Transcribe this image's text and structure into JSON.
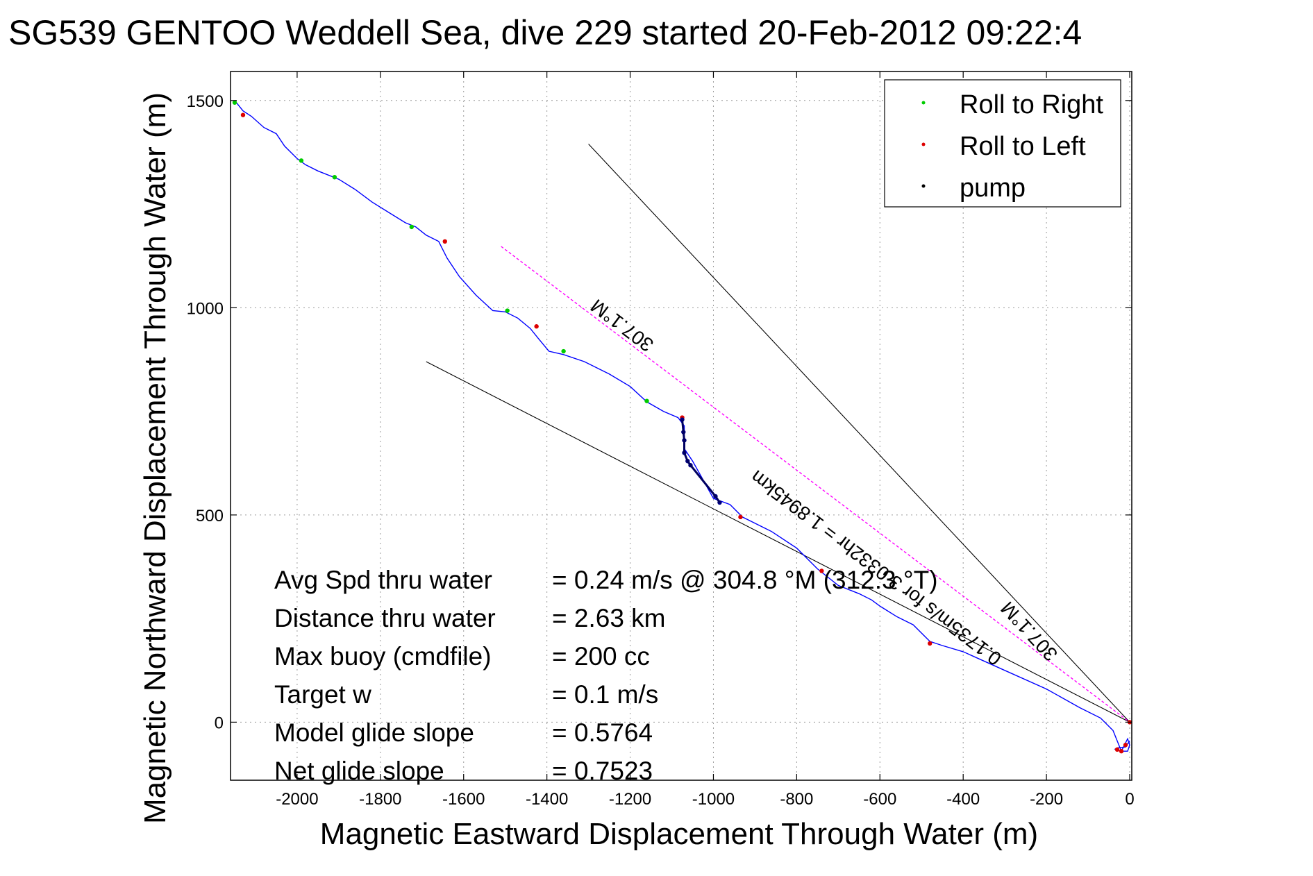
{
  "chart_data": {
    "type": "line",
    "title": "SG539 GENTOO Weddell Sea, dive 229 started 20-Feb-2012 09:22:4",
    "xlabel": "Magnetic Eastward Displacement Through Water (m)",
    "ylabel": "Magnetic Northward Displacement Through Water (m)",
    "xlim": [
      -2160,
      5
    ],
    "ylim": [
      -140,
      1570
    ],
    "xticks": [
      -2000,
      -1800,
      -1600,
      -1400,
      -1200,
      -1000,
      -800,
      -600,
      -400,
      -200,
      0
    ],
    "xtick_labels": [
      "-2000",
      "-1800",
      "-1600",
      "-1400",
      "-1200",
      "-1000",
      "-800",
      "-600",
      "-400",
      "-200",
      "0"
    ],
    "yticks": [
      0,
      500,
      1000,
      1500
    ],
    "ytick_labels": [
      "0",
      "500",
      "1000",
      "1500"
    ],
    "grid": true,
    "legend_position": "top-right",
    "legend": [
      {
        "label": "Roll to Right",
        "color": "#00cc00"
      },
      {
        "label": "Roll to Left",
        "color": "#dd0000"
      },
      {
        "label": "pump",
        "color": "#000000"
      }
    ],
    "series": [
      {
        "style": "track",
        "color": "#0000ff",
        "x": [
          -2150,
          -2130,
          -2110,
          -2080,
          -2050,
          -2030,
          -2000,
          -1980,
          -1950,
          -1900,
          -1860,
          -1820,
          -1780,
          -1740,
          -1715,
          -1690,
          -1660,
          -1640,
          -1610,
          -1570,
          -1530,
          -1500,
          -1470,
          -1440,
          -1420,
          -1395,
          -1360,
          -1310,
          -1250,
          -1200,
          -1160,
          -1120,
          -1085,
          -1070,
          -1070,
          -1050,
          -1000,
          -960,
          -930,
          -860,
          -800,
          -750,
          -700,
          -650,
          -620,
          -600,
          -560,
          -520,
          -480,
          -450,
          -400,
          -300,
          -200,
          -120,
          -70,
          -40,
          -20,
          -5,
          0,
          -5,
          -20,
          -35,
          -30,
          -10,
          0
        ],
        "y": [
          1500,
          1475,
          1462,
          1435,
          1420,
          1390,
          1360,
          1345,
          1330,
          1310,
          1285,
          1255,
          1230,
          1205,
          1195,
          1175,
          1160,
          1120,
          1075,
          1030,
          993,
          990,
          975,
          950,
          925,
          895,
          887,
          870,
          840,
          810,
          773,
          750,
          735,
          715,
          660,
          630,
          540,
          525,
          495,
          460,
          420,
          370,
          330,
          310,
          295,
          280,
          255,
          235,
          195,
          185,
          170,
          125,
          80,
          35,
          10,
          -20,
          -70,
          -40,
          -55,
          -70,
          -70,
          -65,
          -62,
          -60,
          -45
        ]
      },
      {
        "name": "Roll to Right",
        "style": "points",
        "color": "#00cc00",
        "x": [
          -2150,
          -1990,
          -1910,
          -1725,
          -1495,
          -1360,
          -1160
        ],
        "y": [
          1495,
          1355,
          1315,
          1195,
          993,
          895,
          775
        ]
      },
      {
        "name": "Roll to Left",
        "style": "points",
        "color": "#dd0000",
        "x": [
          -2130,
          -1645,
          -1425,
          -1075,
          -935,
          -740,
          -480,
          -20,
          -30,
          -10,
          0
        ],
        "y": [
          1465,
          1160,
          955,
          735,
          495,
          365,
          190,
          -70,
          -66,
          -55,
          0
        ]
      },
      {
        "name": "pump",
        "style": "points",
        "color": "#000080",
        "x": [
          -1075,
          -1072,
          -1070,
          -1070,
          -1062,
          -1055,
          -995,
          -985
        ],
        "y": [
          730,
          700,
          680,
          650,
          630,
          620,
          545,
          530
        ]
      },
      {
        "style": "reference",
        "color": "#000000",
        "x": [
          -1300,
          0
        ],
        "y": [
          1395,
          0
        ]
      },
      {
        "style": "reference",
        "color": "#000000",
        "x": [
          -1690,
          0
        ],
        "y": [
          870,
          0
        ]
      },
      {
        "style": "reference-dashed",
        "color": "#ff00ff",
        "x": [
          -1510,
          0
        ],
        "y": [
          1148,
          0
        ]
      }
    ],
    "annotations": [
      {
        "text": "307.1°M",
        "x": -1210,
        "y": 970,
        "angle": 37.2,
        "size": 28
      },
      {
        "text": "0.1735m/s for 3.0332hr = 1.8945km",
        "x": -600,
        "y": 385,
        "angle": 37.2,
        "size": 28
      },
      {
        "text": "307.1°M",
        "x": -230,
        "y": 230,
        "angle": 47,
        "size": 28
      }
    ],
    "stats": [
      {
        "label": "Avg Spd thru water",
        "value": "=  0.24 m/s @ 304.8 °M (312.3 °T)"
      },
      {
        "label": "Distance thru water",
        "value": "=  2.63 km"
      },
      {
        "label": "Max buoy (cmdfile)",
        "value": "= 200 cc"
      },
      {
        "label": "Target w",
        "value": "= 0.1 m/s"
      },
      {
        "label": "Model glide slope",
        "value": "= 0.5764"
      },
      {
        "label": "Net glide slope",
        "value": "= 0.7523"
      }
    ]
  }
}
